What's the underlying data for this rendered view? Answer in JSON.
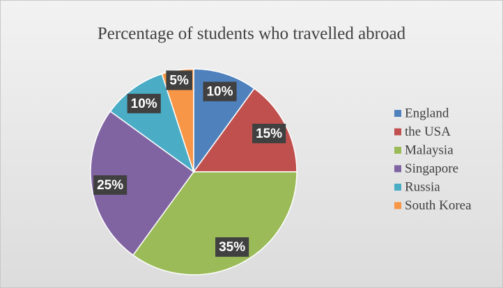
{
  "chart_data": {
    "type": "pie",
    "title": "Percentage of students who travelled abroad",
    "categories": [
      "England",
      "the USA",
      "Malaysia",
      "Singapore",
      "Russia",
      "South Korea"
    ],
    "values": [
      10,
      15,
      35,
      25,
      10,
      5
    ],
    "value_labels": [
      "10%",
      "15%",
      "35%",
      "25%",
      "10%",
      "5%"
    ],
    "colors": [
      "#4f81bd",
      "#c0504d",
      "#9bbb59",
      "#8064a2",
      "#4bacc6",
      "#f79646"
    ],
    "legend": "right"
  }
}
